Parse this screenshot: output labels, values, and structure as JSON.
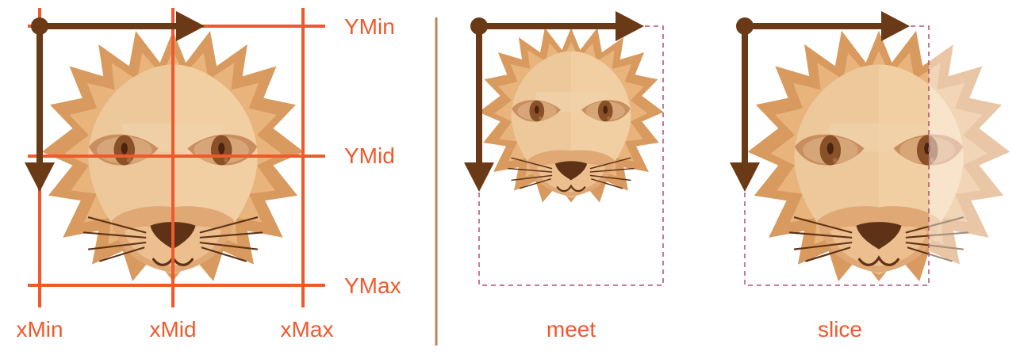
{
  "grid_labels": {
    "y": [
      "YMin",
      "YMid",
      "YMax"
    ],
    "x": [
      "xMin",
      "xMid",
      "xMax"
    ]
  },
  "panels": {
    "meet": {
      "caption": "meet"
    },
    "slice": {
      "caption": "slice"
    }
  },
  "colors": {
    "grid_orange": "#ee5a2c",
    "arrow_brown": "#6a3a17",
    "divider": "#b8865a",
    "dashed_box": "#b45070",
    "mane_dark": "#d89a5e",
    "mane_light": "#e8b47c",
    "face_left": "#ecc89a",
    "face_right": "#f2cfa2",
    "eye_patch": "#c98e60",
    "eye_white": "#d7a678",
    "iris": "#8a5028",
    "nose": "#5e3216"
  },
  "icons": [
    "lion-face-icon",
    "origin-arrow-icon"
  ]
}
